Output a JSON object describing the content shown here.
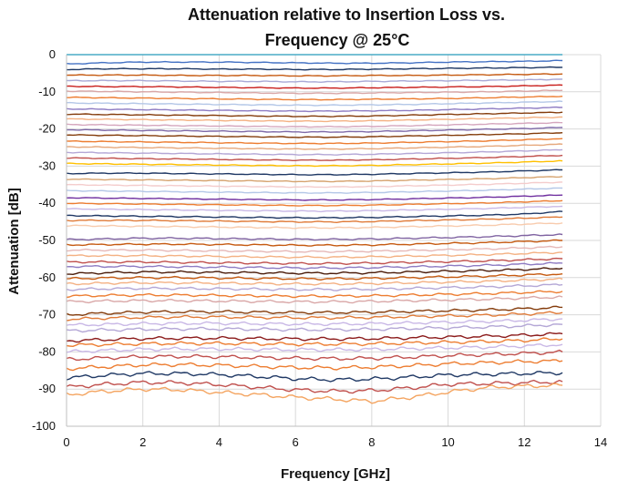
{
  "chart_data": {
    "type": "line",
    "title_lines": [
      "Attenuation relative to Insertion Loss vs.",
      "Frequency @ 25°C"
    ],
    "xlabel": "Frequency [GHz]",
    "ylabel": "Attenuation [dB]",
    "xlim": [
      0,
      14
    ],
    "ylim": [
      -100,
      0
    ],
    "xticks": [
      0,
      2,
      4,
      6,
      8,
      10,
      12,
      14
    ],
    "yticks": [
      0,
      -10,
      -20,
      -30,
      -40,
      -50,
      -60,
      -70,
      -80,
      -90,
      -100
    ],
    "grid": true,
    "legend": "none",
    "x": [
      0,
      1,
      2,
      3,
      4,
      5,
      6,
      7,
      8,
      9,
      10,
      11,
      12,
      13
    ],
    "series": [
      {
        "color": "#4aacc6",
        "values": [
          0,
          0,
          0,
          0,
          0,
          0,
          0,
          0,
          0,
          0,
          0,
          0,
          0,
          0
        ]
      },
      {
        "color": "#4472c4",
        "values": [
          -2.5,
          -2.2,
          -2.0,
          -2.0,
          -2.0,
          -2.1,
          -2.2,
          -2.3,
          -2.3,
          -2.2,
          -2.0,
          -1.9,
          -1.8,
          -1.6
        ]
      },
      {
        "color": "#1f3864",
        "values": [
          -4.0,
          -3.8,
          -3.8,
          -3.8,
          -3.9,
          -3.9,
          -4.0,
          -4.0,
          -3.9,
          -3.8,
          -3.7,
          -3.6,
          -3.5,
          -3.4
        ]
      },
      {
        "color": "#c55a11",
        "values": [
          -5.5,
          -5.5,
          -5.5,
          -5.6,
          -5.6,
          -5.6,
          -5.7,
          -5.7,
          -5.6,
          -5.6,
          -5.5,
          -5.4,
          -5.3,
          -5.2
        ]
      },
      {
        "color": "#a9a9d6",
        "values": [
          -7.0,
          -7.0,
          -7.0,
          -7.1,
          -7.2,
          -7.2,
          -7.3,
          -7.3,
          -7.2,
          -7.1,
          -7.0,
          -6.9,
          -6.8,
          -6.6
        ]
      },
      {
        "color": "#c9211e",
        "values": [
          -8.5,
          -8.6,
          -8.6,
          -8.7,
          -8.8,
          -8.9,
          -9.0,
          -9.0,
          -8.9,
          -8.8,
          -8.7,
          -8.6,
          -8.4,
          -8.2
        ]
      },
      {
        "color": "#d9a7a7",
        "values": [
          -9.8,
          -9.9,
          -10.0,
          -10.1,
          -10.2,
          -10.3,
          -10.4,
          -10.4,
          -10.3,
          -10.2,
          -10.1,
          -10.0,
          -9.8,
          -9.6
        ]
      },
      {
        "color": "#ed7d31",
        "values": [
          -11.5,
          -11.6,
          -11.7,
          -11.8,
          -11.9,
          -12.0,
          -12.1,
          -12.1,
          -12.0,
          -11.9,
          -11.8,
          -11.6,
          -11.4,
          -11.2
        ]
      },
      {
        "color": "#b4c7e7",
        "values": [
          -13.0,
          -13.1,
          -13.2,
          -13.3,
          -13.4,
          -13.5,
          -13.6,
          -13.6,
          -13.5,
          -13.4,
          -13.2,
          -13.0,
          -12.8,
          -12.6
        ]
      },
      {
        "color": "#8e7cc3",
        "values": [
          -14.6,
          -14.7,
          -14.8,
          -14.9,
          -15.0,
          -15.1,
          -15.2,
          -15.2,
          -15.1,
          -15.0,
          -14.8,
          -14.6,
          -14.4,
          -14.2
        ]
      },
      {
        "color": "#843c0c",
        "values": [
          -16.0,
          -16.1,
          -16.2,
          -16.3,
          -16.4,
          -16.5,
          -16.6,
          -16.6,
          -16.5,
          -16.3,
          -16.1,
          -15.9,
          -15.7,
          -15.5
        ]
      },
      {
        "color": "#f4b183",
        "values": [
          -17.3,
          -17.4,
          -17.5,
          -17.6,
          -17.7,
          -17.8,
          -17.9,
          -17.9,
          -17.8,
          -17.6,
          -17.4,
          -17.2,
          -17.0,
          -16.8
        ]
      },
      {
        "color": "#d5a6bd",
        "values": [
          -18.8,
          -18.9,
          -19.0,
          -19.1,
          -19.2,
          -19.3,
          -19.4,
          -19.4,
          -19.3,
          -19.1,
          -18.9,
          -18.7,
          -18.5,
          -18.3
        ]
      },
      {
        "color": "#7f6aa8",
        "values": [
          -20.2,
          -20.3,
          -20.4,
          -20.5,
          -20.6,
          -20.7,
          -20.8,
          -20.8,
          -20.7,
          -20.5,
          -20.3,
          -20.1,
          -19.9,
          -19.6
        ]
      },
      {
        "color": "#833c0b",
        "values": [
          -21.6,
          -21.7,
          -21.8,
          -21.9,
          -22.0,
          -22.1,
          -22.2,
          -22.2,
          -22.1,
          -21.9,
          -21.7,
          -21.5,
          -21.3,
          -21.0
        ]
      },
      {
        "color": "#ed7d31",
        "values": [
          -23.3,
          -23.4,
          -23.5,
          -23.6,
          -23.7,
          -23.8,
          -23.9,
          -23.9,
          -23.8,
          -23.6,
          -23.4,
          -23.2,
          -22.9,
          -22.6
        ]
      },
      {
        "color": "#e6a87c",
        "values": [
          -24.8,
          -24.9,
          -25.0,
          -25.1,
          -25.2,
          -25.3,
          -25.4,
          -25.4,
          -25.3,
          -25.1,
          -24.9,
          -24.7,
          -24.4,
          -24.1
        ]
      },
      {
        "color": "#b4a7d6",
        "values": [
          -26.3,
          -26.4,
          -26.5,
          -26.6,
          -26.7,
          -26.8,
          -26.9,
          -26.9,
          -26.8,
          -26.6,
          -26.4,
          -26.2,
          -25.9,
          -25.6
        ]
      },
      {
        "color": "#c0504d",
        "values": [
          -27.8,
          -27.9,
          -28.0,
          -28.1,
          -28.2,
          -28.3,
          -28.4,
          -28.4,
          -28.3,
          -28.1,
          -27.9,
          -27.7,
          -27.4,
          -27.1
        ]
      },
      {
        "color": "#ffc000",
        "values": [
          -29.3,
          -29.4,
          -29.5,
          -29.6,
          -29.7,
          -29.8,
          -29.9,
          -29.9,
          -29.8,
          -29.6,
          -29.4,
          -29.2,
          -28.9,
          -28.6
        ]
      },
      {
        "color": "#1f3864",
        "values": [
          -32.0,
          -31.9,
          -31.9,
          -32.0,
          -32.1,
          -32.2,
          -32.3,
          -32.3,
          -32.2,
          -32.0,
          -31.8,
          -31.6,
          -31.3,
          -31.0
        ]
      },
      {
        "color": "#d6a36f",
        "values": [
          -33.5,
          -33.6,
          -33.7,
          -33.8,
          -33.9,
          -34.0,
          -34.1,
          -34.1,
          -34.0,
          -33.8,
          -33.6,
          -33.4,
          -33.1,
          -32.8
        ]
      },
      {
        "color": "#f4cccc",
        "values": [
          -35.0,
          -35.1,
          -35.2,
          -35.3,
          -35.4,
          -35.5,
          -35.6,
          -35.6,
          -35.5,
          -35.3,
          -35.1,
          -34.9,
          -34.6,
          -34.3
        ]
      },
      {
        "color": "#b4c7e7",
        "values": [
          -36.6,
          -36.7,
          -36.8,
          -36.9,
          -37.0,
          -37.1,
          -37.2,
          -37.2,
          -37.1,
          -36.9,
          -36.7,
          -36.5,
          -36.2,
          -35.9
        ]
      },
      {
        "color": "#7030a0",
        "values": [
          -38.5,
          -38.6,
          -38.7,
          -38.8,
          -38.9,
          -39.0,
          -39.1,
          -39.1,
          -39.0,
          -38.8,
          -38.6,
          -38.4,
          -38.1,
          -37.8
        ]
      },
      {
        "color": "#ed7d31",
        "values": [
          -40.0,
          -40.1,
          -40.2,
          -40.3,
          -40.4,
          -40.5,
          -40.6,
          -40.6,
          -40.5,
          -40.3,
          -40.1,
          -39.9,
          -39.6,
          -39.3
        ]
      },
      {
        "color": "#c9b8e6",
        "values": [
          -41.5,
          -41.6,
          -41.7,
          -41.8,
          -41.9,
          -42.0,
          -42.1,
          -42.1,
          -42.0,
          -41.8,
          -41.6,
          -41.4,
          -41.1,
          -40.8
        ]
      },
      {
        "color": "#203864",
        "values": [
          -43.3,
          -43.4,
          -43.5,
          -43.6,
          -43.7,
          -43.8,
          -43.9,
          -43.9,
          -43.8,
          -43.6,
          -43.4,
          -43.2,
          -42.9,
          -42.2
        ]
      },
      {
        "color": "#e07b39",
        "values": [
          -44.6,
          -44.6,
          -44.6,
          -44.7,
          -44.8,
          -44.9,
          -45.0,
          -45.0,
          -44.9,
          -44.7,
          -44.5,
          -44.3,
          -44.0,
          -43.7
        ]
      },
      {
        "color": "#f8cbad",
        "values": [
          -46.0,
          -46.1,
          -46.2,
          -46.3,
          -46.4,
          -46.5,
          -46.6,
          -46.6,
          -46.5,
          -46.3,
          -46.1,
          -45.9,
          -45.6,
          -45.3
        ]
      },
      {
        "color": "#8064a2",
        "values": [
          -49.8,
          -49.6,
          -49.4,
          -49.4,
          -49.5,
          -49.6,
          -49.7,
          -49.7,
          -49.6,
          -49.4,
          -49.2,
          -49.0,
          -48.7,
          -48.4
        ]
      },
      {
        "color": "#c55a11",
        "values": [
          -51.2,
          -51.1,
          -51.0,
          -51.0,
          -51.1,
          -51.2,
          -51.3,
          -51.3,
          -51.2,
          -51.0,
          -50.8,
          -50.6,
          -50.3,
          -50.0
        ]
      },
      {
        "color": "#e6b8b7",
        "values": [
          -52.6,
          -52.6,
          -52.6,
          -52.7,
          -52.8,
          -52.9,
          -53.0,
          -53.0,
          -52.9,
          -52.7,
          -52.5,
          -52.3,
          -52.0,
          -51.7
        ]
      },
      {
        "color": "#f4b183",
        "values": [
          -54.1,
          -54.1,
          -54.1,
          -54.2,
          -54.3,
          -54.4,
          -54.5,
          -54.5,
          -54.4,
          -54.2,
          -54.0,
          -53.8,
          -53.5,
          -53.2
        ]
      },
      {
        "color": "#c0504d",
        "values": [
          -55.8,
          -55.8,
          -55.8,
          -55.9,
          -56.0,
          -56.1,
          -56.2,
          -56.2,
          -56.1,
          -55.9,
          -55.7,
          -55.5,
          -55.2,
          -54.9
        ]
      },
      {
        "color": "#8e7cc3",
        "values": [
          -57.0,
          -57.0,
          -57.0,
          -57.1,
          -57.2,
          -57.3,
          -57.4,
          -57.4,
          -57.3,
          -57.1,
          -56.9,
          -56.7,
          -56.4,
          -56.1
        ]
      },
      {
        "color": "#4a1c0a",
        "values": [
          -59.0,
          -58.7,
          -58.5,
          -58.5,
          -58.6,
          -58.7,
          -58.8,
          -58.8,
          -58.7,
          -58.5,
          -58.3,
          -58.1,
          -57.8,
          -57.5
        ]
      },
      {
        "color": "#c55a11",
        "values": [
          -60.3,
          -60.1,
          -60.0,
          -60.0,
          -60.1,
          -60.2,
          -60.3,
          -60.3,
          -60.2,
          -60.0,
          -59.8,
          -59.6,
          -59.3,
          -59.0
        ]
      },
      {
        "color": "#f4b183",
        "values": [
          -61.7,
          -61.5,
          -61.4,
          -61.4,
          -61.5,
          -61.6,
          -61.7,
          -61.7,
          -61.6,
          -61.4,
          -61.2,
          -61.0,
          -60.7,
          -60.4
        ]
      },
      {
        "color": "#b4a7d6",
        "values": [
          -63.2,
          -63.0,
          -62.9,
          -62.9,
          -63.0,
          -63.1,
          -63.2,
          -63.2,
          -63.1,
          -62.9,
          -62.7,
          -62.5,
          -62.2,
          -61.9
        ]
      },
      {
        "color": "#ed7d31",
        "values": [
          -65.0,
          -64.8,
          -64.7,
          -64.7,
          -64.8,
          -64.9,
          -65.0,
          -65.0,
          -64.9,
          -64.7,
          -64.5,
          -64.3,
          -64.0,
          -63.7
        ]
      },
      {
        "color": "#d9a7a7",
        "values": [
          -66.5,
          -66.3,
          -66.2,
          -66.2,
          -66.3,
          -66.4,
          -66.5,
          -66.5,
          -66.4,
          -66.2,
          -66.0,
          -65.8,
          -65.5,
          -65.2
        ]
      },
      {
        "color": "#843c0c",
        "values": [
          -70.0,
          -69.6,
          -69.3,
          -69.2,
          -69.2,
          -69.3,
          -69.4,
          -69.4,
          -69.3,
          -69.1,
          -68.9,
          -68.7,
          -68.4,
          -68.0
        ]
      },
      {
        "color": "#e07b39",
        "values": [
          -71.2,
          -70.9,
          -70.7,
          -70.6,
          -70.6,
          -70.7,
          -70.8,
          -70.8,
          -70.7,
          -70.5,
          -70.3,
          -70.1,
          -69.8,
          -69.4
        ]
      },
      {
        "color": "#c9b8e6",
        "values": [
          -72.8,
          -72.6,
          -72.4,
          -72.3,
          -72.3,
          -72.4,
          -72.5,
          -72.5,
          -72.4,
          -72.2,
          -72.0,
          -71.8,
          -71.5,
          -71.1
        ]
      },
      {
        "color": "#b4a7d6",
        "values": [
          -74.3,
          -74.1,
          -73.9,
          -73.8,
          -73.8,
          -73.9,
          -74.0,
          -74.0,
          -73.9,
          -73.7,
          -73.5,
          -73.3,
          -73.0,
          -72.6
        ]
      },
      {
        "color": "#8b1a1a",
        "values": [
          -77.0,
          -76.7,
          -76.4,
          -76.3,
          -76.3,
          -76.4,
          -76.5,
          -76.5,
          -76.4,
          -76.2,
          -76.0,
          -75.8,
          -75.5,
          -75.1
        ]
      },
      {
        "color": "#ed7d31",
        "values": [
          -78.2,
          -78.0,
          -77.8,
          -77.7,
          -77.7,
          -77.8,
          -77.9,
          -77.9,
          -77.8,
          -77.6,
          -77.4,
          -77.2,
          -76.9,
          -76.5
        ]
      },
      {
        "color": "#c9b8e6",
        "values": [
          -80.0,
          -79.6,
          -79.3,
          -79.2,
          -79.2,
          -79.3,
          -79.4,
          -79.4,
          -79.3,
          -79.1,
          -78.9,
          -78.7,
          -78.4,
          -78.0
        ]
      },
      {
        "color": "#c0504d",
        "values": [
          -82.0,
          -81.6,
          -81.3,
          -81.2,
          -81.3,
          -81.5,
          -81.7,
          -81.8,
          -81.7,
          -81.4,
          -81.0,
          -80.7,
          -80.4,
          -80.0
        ]
      },
      {
        "color": "#ed7d31",
        "values": [
          -84.5,
          -84.0,
          -83.5,
          -83.4,
          -83.6,
          -83.9,
          -84.2,
          -84.3,
          -84.1,
          -83.7,
          -83.2,
          -82.9,
          -82.6,
          -82.4
        ]
      },
      {
        "color": "#1f3864",
        "values": [
          -87.0,
          -86.3,
          -85.8,
          -85.8,
          -86.1,
          -86.6,
          -87.2,
          -87.5,
          -87.3,
          -86.8,
          -86.2,
          -86.0,
          -85.8,
          -85.6
        ]
      },
      {
        "color": "#c0504d",
        "values": [
          -89.5,
          -88.7,
          -88.2,
          -88.3,
          -88.8,
          -89.5,
          -90.2,
          -90.6,
          -90.4,
          -89.7,
          -88.7,
          -88.5,
          -88.3,
          -88.0
        ]
      },
      {
        "color": "#f4a460",
        "values": [
          -91.5,
          -90.6,
          -90.0,
          -90.2,
          -90.9,
          -91.5,
          -92.2,
          -92.7,
          -93.3,
          -92.2,
          -90.8,
          -89.6,
          -89.2,
          -89.0
        ]
      }
    ]
  }
}
